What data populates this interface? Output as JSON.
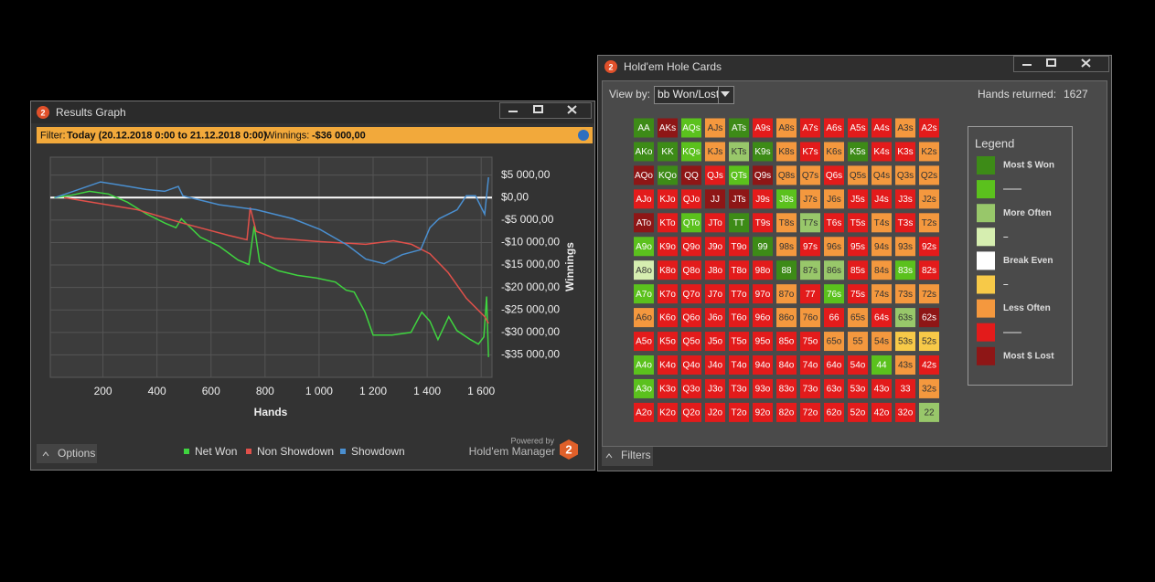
{
  "app_icon": "2",
  "results_window": {
    "title": "Results Graph",
    "filter_label": "Filter:",
    "filter_value": "Today (20.12.2018 0:00 to 21.12.2018 0:00)",
    "winnings_label": "Winnings:",
    "winnings_value": "-$36 000,00",
    "options_button": "Options",
    "powered_by": "Powered by",
    "brand": "Hold'em Manager"
  },
  "chart_data": {
    "type": "line",
    "x_label": "Hands",
    "y_label": "Winnings",
    "xlim": [
      5,
      1640
    ],
    "ylim": [
      -40000,
      9000
    ],
    "xticks": [
      200,
      400,
      600,
      800,
      {
        "value": 1000,
        "label": "1 000"
      },
      {
        "value": 1200,
        "label": "1 200"
      },
      {
        "value": 1400,
        "label": "1 400"
      },
      {
        "value": 1600,
        "label": "1 600"
      }
    ],
    "yticks": [
      {
        "value": 5000,
        "label": "$5 000,00"
      },
      {
        "value": 0,
        "label": "$0,00"
      },
      {
        "value": -5000,
        "label": "-$5 000,00"
      },
      {
        "value": -10000,
        "label": "-$10 000,00"
      },
      {
        "value": -15000,
        "label": "-$15 000,00"
      },
      {
        "value": -20000,
        "label": "-$20 000,00"
      },
      {
        "value": -25000,
        "label": "-$25 000,00"
      },
      {
        "value": -30000,
        "label": "-$30 000,00"
      },
      {
        "value": -35000,
        "label": "-$35 000,00"
      }
    ],
    "grid": true,
    "reference_line": {
      "value": 0,
      "color": "#ffffff"
    },
    "series": [
      {
        "name": "Net Won",
        "color": "#3fd43f",
        "x": [
          20,
          80,
          150,
          220,
          290,
          360,
          430,
          470,
          490,
          560,
          630,
          700,
          740,
          760,
          780,
          850,
          920,
          990,
          1060,
          1100,
          1130,
          1170,
          1200,
          1270,
          1340,
          1380,
          1410,
          1440,
          1480,
          1510,
          1560,
          1590,
          1610,
          1620,
          1627
        ],
        "values": [
          0,
          500,
          1400,
          800,
          -1000,
          -3600,
          -5700,
          -6700,
          -4700,
          -8800,
          -10800,
          -13900,
          -14900,
          -6300,
          -14300,
          -16300,
          -17300,
          -17900,
          -18800,
          -20600,
          -21000,
          -25500,
          -30600,
          -30600,
          -30000,
          -25500,
          -27500,
          -31600,
          -26500,
          -29600,
          -31600,
          -32600,
          -31000,
          -22000,
          -35500
        ]
      },
      {
        "name": "Non Showdown",
        "color": "#e0504a",
        "x": [
          56,
          157,
          327,
          496,
          665,
          733,
          745,
          767,
          834,
          1004,
          1173,
          1275,
          1342,
          1410,
          1478,
          1545,
          1613,
          1627
        ],
        "values": [
          0,
          -1000,
          -2700,
          -5700,
          -8400,
          -9400,
          -2200,
          -7500,
          -9000,
          -9800,
          -10400,
          -9600,
          -10400,
          -12500,
          -16700,
          -22400,
          -26500,
          -28000
        ]
      },
      {
        "name": "Showdown",
        "color": "#4a8fd0",
        "x": [
          22,
          90,
          191,
          293,
          360,
          428,
          479,
          496,
          631,
          767,
          902,
          1004,
          1105,
          1173,
          1241,
          1308,
          1376,
          1410,
          1444,
          1511,
          1545,
          1579,
          1613,
          1627
        ],
        "values": [
          0,
          1400,
          3500,
          2500,
          1800,
          1400,
          2500,
          400,
          -1600,
          -2700,
          -4700,
          -7100,
          -10600,
          -13700,
          -14700,
          -12700,
          -11600,
          -6700,
          -4700,
          -2700,
          400,
          400,
          -3700,
          4500
        ]
      }
    ]
  },
  "hole_cards_window": {
    "title": "Hold'em Hole Cards",
    "view_by_label": "View by:",
    "view_by_value": "bb Won/Lost",
    "hands_returned_label": "Hands returned:",
    "hands_returned_value": "1627",
    "filters_button": "Filters",
    "labels": [
      [
        "AA",
        "AKs",
        "AQs",
        "AJs",
        "ATs",
        "A9s",
        "A8s",
        "A7s",
        "A6s",
        "A5s",
        "A4s",
        "A3s",
        "A2s"
      ],
      [
        "AKo",
        "KK",
        "KQs",
        "KJs",
        "KTs",
        "K9s",
        "K8s",
        "K7s",
        "K6s",
        "K5s",
        "K4s",
        "K3s",
        "K2s"
      ],
      [
        "AQo",
        "KQo",
        "QQ",
        "QJs",
        "QTs",
        "Q9s",
        "Q8s",
        "Q7s",
        "Q6s",
        "Q5s",
        "Q4s",
        "Q3s",
        "Q2s"
      ],
      [
        "AJo",
        "KJo",
        "QJo",
        "JJ",
        "JTs",
        "J9s",
        "J8s",
        "J7s",
        "J6s",
        "J5s",
        "J4s",
        "J3s",
        "J2s"
      ],
      [
        "ATo",
        "KTo",
        "QTo",
        "JTo",
        "TT",
        "T9s",
        "T8s",
        "T7s",
        "T6s",
        "T5s",
        "T4s",
        "T3s",
        "T2s"
      ],
      [
        "A9o",
        "K9o",
        "Q9o",
        "J9o",
        "T9o",
        "99",
        "98s",
        "97s",
        "96s",
        "95s",
        "94s",
        "93s",
        "92s"
      ],
      [
        "A8o",
        "K8o",
        "Q8o",
        "J8o",
        "T8o",
        "98o",
        "88",
        "87s",
        "86s",
        "85s",
        "84s",
        "83s",
        "82s"
      ],
      [
        "A7o",
        "K7o",
        "Q7o",
        "J7o",
        "T7o",
        "97o",
        "87o",
        "77",
        "76s",
        "75s",
        "74s",
        "73s",
        "72s"
      ],
      [
        "A6o",
        "K6o",
        "Q6o",
        "J6o",
        "T6o",
        "96o",
        "86o",
        "76o",
        "66",
        "65s",
        "64s",
        "63s",
        "62s"
      ],
      [
        "A5o",
        "K5o",
        "Q5o",
        "J5o",
        "T5o",
        "95o",
        "85o",
        "75o",
        "65o",
        "55",
        "54s",
        "53s",
        "52s"
      ],
      [
        "A4o",
        "K4o",
        "Q4o",
        "J4o",
        "T4o",
        "94o",
        "84o",
        "74o",
        "64o",
        "54o",
        "44",
        "43s",
        "42s"
      ],
      [
        "A3o",
        "K3o",
        "Q3o",
        "J3o",
        "T3o",
        "93o",
        "83o",
        "73o",
        "63o",
        "53o",
        "43o",
        "33",
        "32s"
      ],
      [
        "A2o",
        "K2o",
        "Q2o",
        "J2o",
        "T2o",
        "92o",
        "82o",
        "72o",
        "62o",
        "52o",
        "42o",
        "32o",
        "22"
      ]
    ],
    "colors": [
      [
        "#3d8b17",
        "#8e1616",
        "#5bc11d",
        "#f4983e",
        "#3d8b17",
        "#e31b1b",
        "#f4983e",
        "#e31b1b",
        "#e31b1b",
        "#e31b1b",
        "#e31b1b",
        "#f4983e",
        "#e31b1b"
      ],
      [
        "#3d8b17",
        "#3d8b17",
        "#5bc11d",
        "#f4983e",
        "#98c76a",
        "#3d8b17",
        "#f4983e",
        "#e31b1b",
        "#f4983e",
        "#3d8b17",
        "#e31b1b",
        "#e31b1b",
        "#f4983e"
      ],
      [
        "#8e1616",
        "#3d8b17",
        "#8e1616",
        "#e31b1b",
        "#5bc11d",
        "#8e1616",
        "#f4983e",
        "#f4983e",
        "#e31b1b",
        "#f4983e",
        "#f4983e",
        "#f4983e",
        "#f4983e"
      ],
      [
        "#e31b1b",
        "#e31b1b",
        "#e31b1b",
        "#8e1616",
        "#8e1616",
        "#e31b1b",
        "#5bc11d",
        "#f4983e",
        "#f4983e",
        "#e31b1b",
        "#e31b1b",
        "#e31b1b",
        "#f4983e"
      ],
      [
        "#8e1616",
        "#e31b1b",
        "#5bc11d",
        "#e31b1b",
        "#3d8b17",
        "#e31b1b",
        "#f4983e",
        "#98c76a",
        "#e31b1b",
        "#e31b1b",
        "#f4983e",
        "#e31b1b",
        "#f4983e"
      ],
      [
        "#5bc11d",
        "#e31b1b",
        "#e31b1b",
        "#e31b1b",
        "#e31b1b",
        "#3d8b17",
        "#f4983e",
        "#e31b1b",
        "#f4983e",
        "#e31b1b",
        "#f4983e",
        "#f4983e",
        "#e31b1b"
      ],
      [
        "#d6eeb0",
        "#e31b1b",
        "#e31b1b",
        "#e31b1b",
        "#e31b1b",
        "#e31b1b",
        "#3d8b17",
        "#98c76a",
        "#98c76a",
        "#e31b1b",
        "#f4983e",
        "#5bc11d",
        "#e31b1b"
      ],
      [
        "#5bc11d",
        "#e31b1b",
        "#e31b1b",
        "#e31b1b",
        "#e31b1b",
        "#e31b1b",
        "#f4983e",
        "#e31b1b",
        "#5bc11d",
        "#e31b1b",
        "#f4983e",
        "#f4983e",
        "#f4983e"
      ],
      [
        "#f4983e",
        "#e31b1b",
        "#e31b1b",
        "#e31b1b",
        "#e31b1b",
        "#e31b1b",
        "#f4983e",
        "#f4983e",
        "#e31b1b",
        "#f4983e",
        "#e31b1b",
        "#98c76a",
        "#8e1616"
      ],
      [
        "#e31b1b",
        "#e31b1b",
        "#e31b1b",
        "#e31b1b",
        "#e31b1b",
        "#e31b1b",
        "#e31b1b",
        "#e31b1b",
        "#f4983e",
        "#f4983e",
        "#f4983e",
        "#f7c948",
        "#f7c948"
      ],
      [
        "#5bc11d",
        "#e31b1b",
        "#e31b1b",
        "#e31b1b",
        "#e31b1b",
        "#e31b1b",
        "#e31b1b",
        "#e31b1b",
        "#e31b1b",
        "#e31b1b",
        "#5bc11d",
        "#f4983e",
        "#e31b1b"
      ],
      [
        "#5bc11d",
        "#e31b1b",
        "#e31b1b",
        "#e31b1b",
        "#e31b1b",
        "#e31b1b",
        "#e31b1b",
        "#e31b1b",
        "#e31b1b",
        "#e31b1b",
        "#e31b1b",
        "#e31b1b",
        "#f4983e"
      ],
      [
        "#e31b1b",
        "#e31b1b",
        "#e31b1b",
        "#e31b1b",
        "#e31b1b",
        "#e31b1b",
        "#e31b1b",
        "#e31b1b",
        "#e31b1b",
        "#e31b1b",
        "#e31b1b",
        "#e31b1b",
        "#98c76a"
      ]
    ],
    "legend": {
      "title": "Legend",
      "items": [
        {
          "label": "Most $ Won",
          "color": "#3d8b17"
        },
        {
          "label": "——",
          "color": "#5bc11d"
        },
        {
          "label": "More Often",
          "color": "#98c76a"
        },
        {
          "label": "–",
          "color": "#d6eeb0"
        },
        {
          "label": "Break Even",
          "color": "#ffffff"
        },
        {
          "label": "–",
          "color": "#f7c948"
        },
        {
          "label": "Less Often",
          "color": "#f4983e"
        },
        {
          "label": "——",
          "color": "#e31b1b"
        },
        {
          "label": "Most $ Lost",
          "color": "#8e1616"
        }
      ]
    }
  }
}
